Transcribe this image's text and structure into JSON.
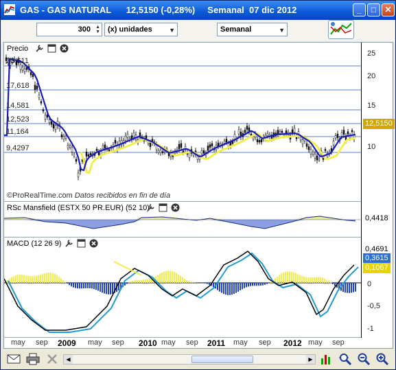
{
  "window": {
    "title": "GAS - GAS NATURAL      12,5150 (-0,28%)     Semanal  07 dic 2012",
    "buttons": [
      "minimize",
      "maximize",
      "close"
    ]
  },
  "toolbar": {
    "quantity_value": "300",
    "units_label": "(x) unidades",
    "period_label": "Semanal"
  },
  "price_panel": {
    "label": "Precio",
    "y_ticks": [
      "25",
      "20",
      "15",
      "10"
    ],
    "left_levels": [
      "23,611",
      "17,618",
      "14,581",
      "12,523",
      "11,164",
      "9,4297"
    ],
    "last_price": "12,5150",
    "footer": "©ProRealTime.com",
    "footer_note": "Datos recibidos en fin de día"
  },
  "rsc_panel": {
    "label": "RSc Mansfield (ESTX 50 PR.EUR) (52 10)",
    "value": "0,4418"
  },
  "macd_panel": {
    "label": "MACD (12 26 9)",
    "y_ticks": [
      "0",
      "-0,5",
      "-1"
    ],
    "values": [
      "0,4691",
      "0,3615",
      "0,1067"
    ]
  },
  "x_axis": [
    {
      "label": "may",
      "bold": false
    },
    {
      "label": "sep",
      "bold": false
    },
    {
      "label": "2009",
      "bold": true
    },
    {
      "label": "may",
      "bold": false
    },
    {
      "label": "sep",
      "bold": false
    },
    {
      "label": "2010",
      "bold": true
    },
    {
      "label": "may",
      "bold": false
    },
    {
      "label": "sep",
      "bold": false
    },
    {
      "label": "2011",
      "bold": true
    },
    {
      "label": "may",
      "bold": false
    },
    {
      "label": "sep",
      "bold": false
    },
    {
      "label": "2012",
      "bold": true
    },
    {
      "label": "may",
      "bold": false
    },
    {
      "label": "sep",
      "bold": false
    }
  ],
  "colors": {
    "candle_up": "#000000",
    "ma_blue": "#1a1ab8",
    "ma_yellow": "#f2ee4c",
    "rsc_positive": "#e8e8a0",
    "rsc_negative": "#8aa0e0",
    "macd_blue": "#2040c8",
    "badge_price": "#d4a600",
    "badge_rsc": "#ffffff",
    "badge_macd_blue": "#2b6fd6",
    "badge_macd_yellow": "#e8d400"
  },
  "icons": [
    "mail-icon",
    "print-icon",
    "delete-icon",
    "zoom-fit-icon",
    "zoom-out-icon",
    "zoom-in-icon"
  ]
}
